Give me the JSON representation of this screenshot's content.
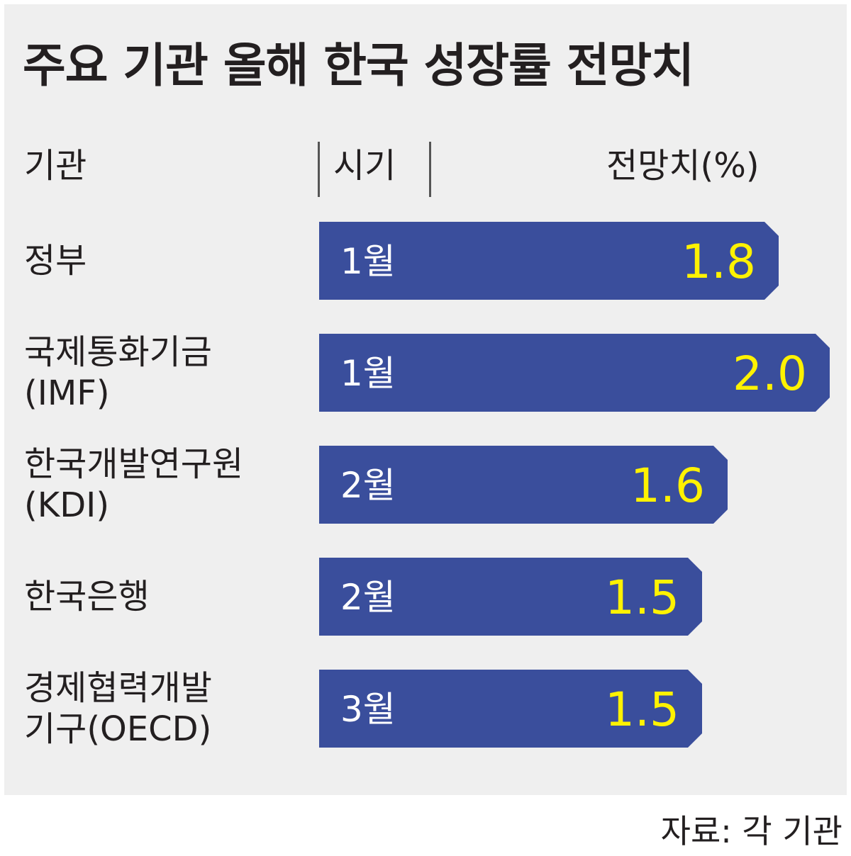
{
  "title": "주요 기관 올해 한국 성장률 전망치",
  "headers": {
    "institution": "기관",
    "period": "시기",
    "forecast": "전망치(%)"
  },
  "source": "자료: 각 기관",
  "colors": {
    "bar": "#3a4e9c",
    "value_text": "#fff200",
    "period_text": "#ffffff",
    "panel": "#efefef"
  },
  "chart_data": {
    "type": "bar",
    "orientation": "horizontal",
    "xlim": [
      0,
      2.0
    ],
    "rows": [
      {
        "institution": [
          "정부"
        ],
        "period": "1월",
        "value": 1.8,
        "label": "1.8"
      },
      {
        "institution": [
          "국제통화기금",
          "(IMF)"
        ],
        "period": "1월",
        "value": 2.0,
        "label": "2.0"
      },
      {
        "institution": [
          "한국개발연구원",
          "(KDI)"
        ],
        "period": "2월",
        "value": 1.6,
        "label": "1.6"
      },
      {
        "institution": [
          "한국은행"
        ],
        "period": "2월",
        "value": 1.5,
        "label": "1.5"
      },
      {
        "institution": [
          "경제협력개발",
          "기구(OECD)"
        ],
        "period": "3월",
        "value": 1.5,
        "label": "1.5"
      }
    ]
  }
}
